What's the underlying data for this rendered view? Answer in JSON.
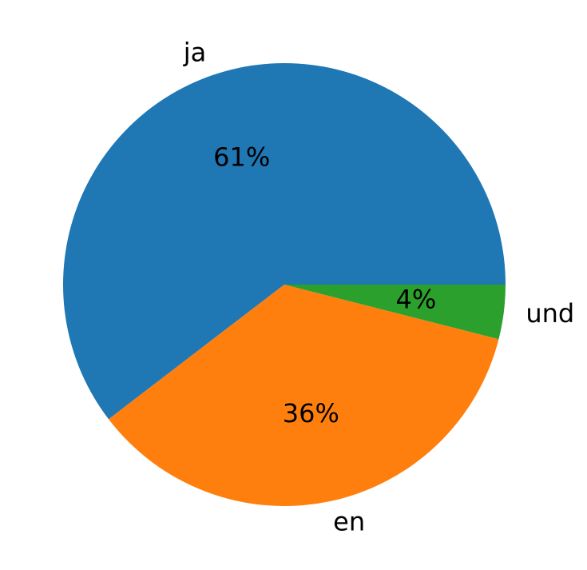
{
  "chart_data": {
    "type": "pie",
    "categories": [
      "ja",
      "en",
      "und"
    ],
    "values": [
      61,
      36,
      4
    ],
    "value_labels": [
      "61%",
      "36%",
      "4%"
    ],
    "colors": [
      "#1f77b4",
      "#ff7f0e",
      "#2ca02c"
    ]
  }
}
